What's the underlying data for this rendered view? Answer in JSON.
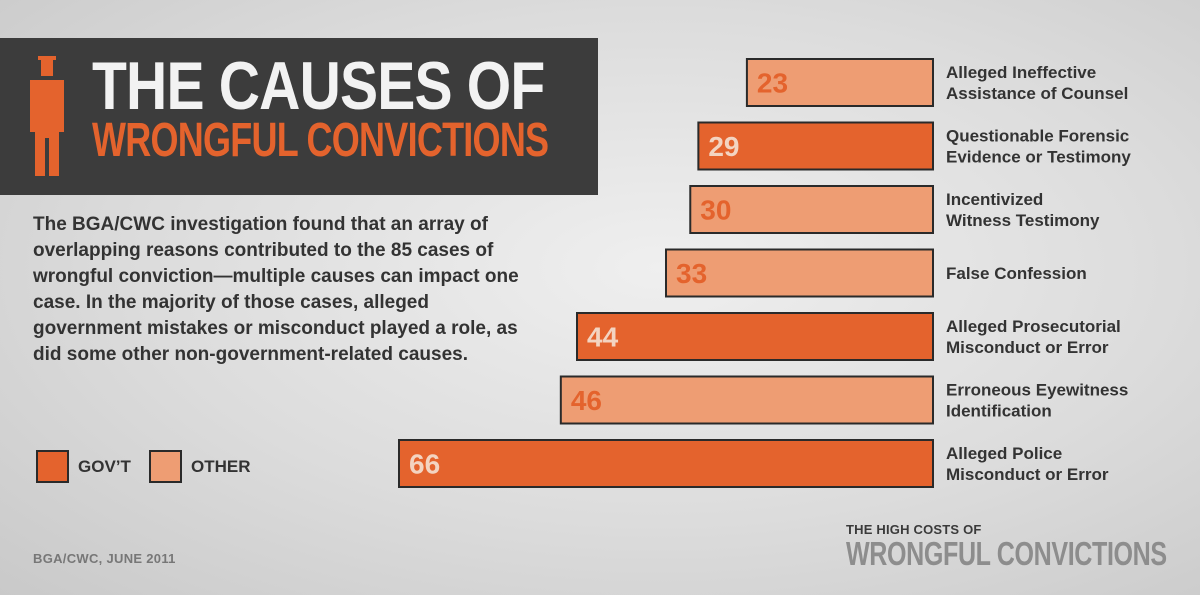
{
  "title": {
    "line1": "The Causes of",
    "line2": "Wrongful Convictions"
  },
  "description": "The BGA/CWC investigation found that an array of overlapping reasons contributed to the 85 cases of wrongful conviction—multiple causes can impact one case. In the majority of those cases, alleged government mistakes or misconduct played a role, as did some other non-government-related causes.",
  "legend": [
    {
      "label": "GOV’T",
      "color": "#e4632d"
    },
    {
      "label": "OTHER",
      "color": "#ee9d73"
    }
  ],
  "source": "BGA/CWC, JUNE 2011",
  "brand": {
    "top": "THE HIGH COSTS OF",
    "main": "WRONGFUL CONVICTIONS"
  },
  "colors": {
    "govt": "#e4632d",
    "other": "#ee9d73",
    "title_bg": "#3c3c3c",
    "accent": "#e4632d"
  },
  "icons": {
    "title": "person-icon"
  },
  "chart_data": {
    "type": "bar",
    "orientation": "horizontal",
    "title": "",
    "xlabel": "",
    "ylabel": "",
    "xlim": [
      0,
      66
    ],
    "grid": false,
    "legend_position": "bottom-left",
    "categories": [
      [
        "Alleged Ineffective",
        "Assistance of Counsel"
      ],
      [
        "Questionable Forensic",
        "Evidence or Testimony"
      ],
      [
        "Incentivized",
        "Witness Testimony"
      ],
      [
        "False Confession"
      ],
      [
        "Alleged Prosecutorial",
        "Misconduct or Error"
      ],
      [
        "Erroneous Eyewitness",
        "Identification"
      ],
      [
        "Alleged Police",
        "Misconduct or Error"
      ]
    ],
    "values": [
      23,
      29,
      30,
      33,
      44,
      46,
      66
    ],
    "groups": [
      "OTHER",
      "GOV’T",
      "OTHER",
      "OTHER",
      "GOV’T",
      "OTHER",
      "GOV’T"
    ]
  }
}
